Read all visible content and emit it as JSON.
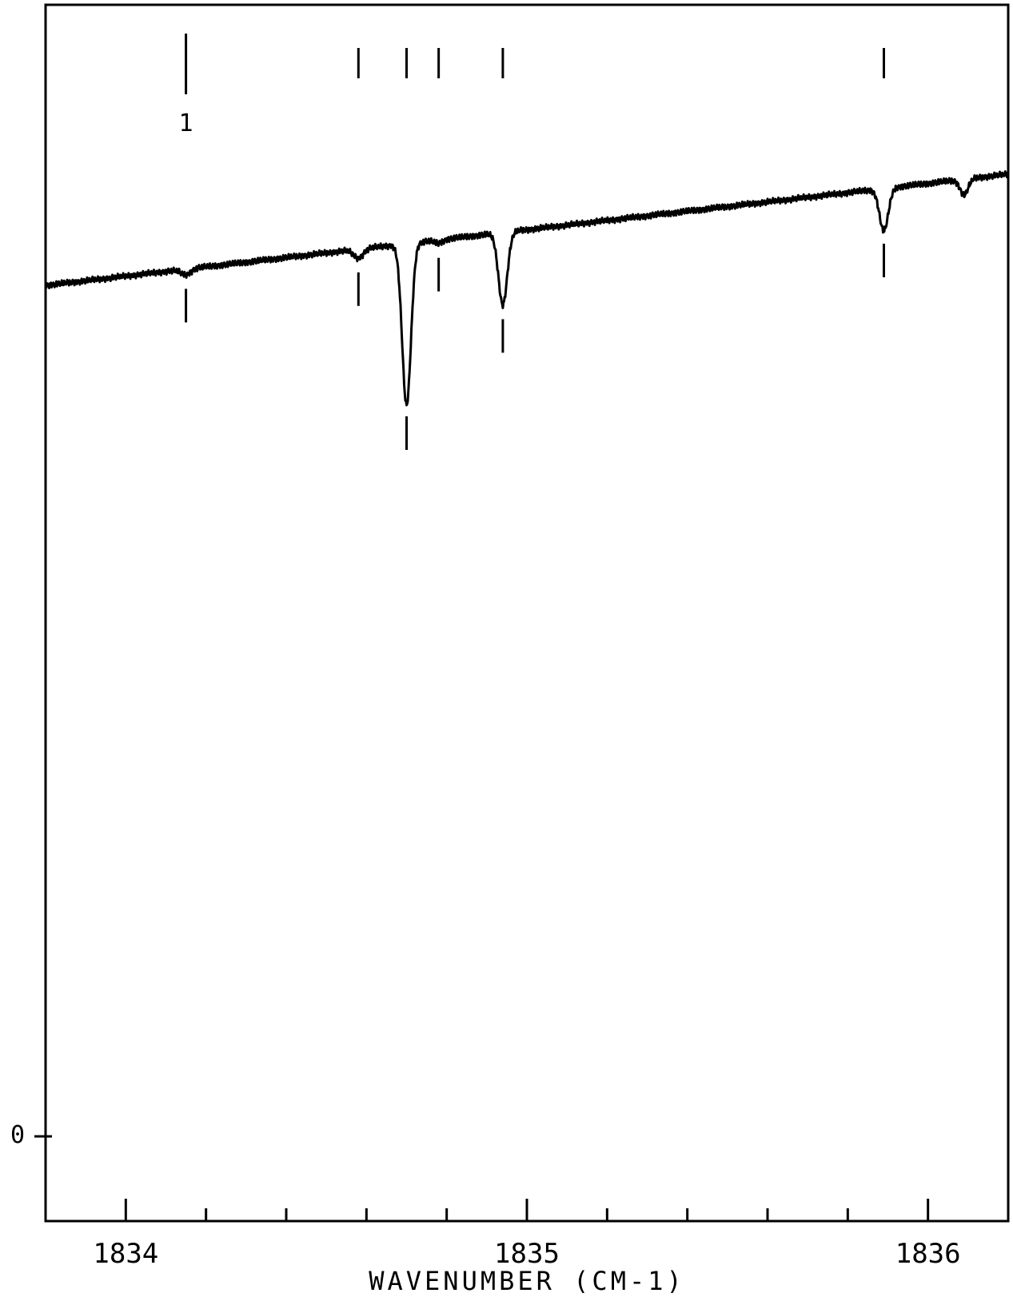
{
  "chart_data": {
    "type": "line",
    "title": "",
    "xlabel": "WAVENUMBER (CM-1)",
    "ylabel": "",
    "xlim": [
      1833.8,
      1836.2
    ],
    "ylim": [
      0,
      100
    ],
    "x_ticks_major": [
      1834,
      1835,
      1836
    ],
    "x_tick_labels": [
      "1834",
      "1835",
      "1836"
    ],
    "x_ticks_minor": [
      1834.2,
      1834.4,
      1834.6,
      1834.8,
      1835.2,
      1835.4,
      1835.6,
      1835.8
    ],
    "y_tick_labels": [
      {
        "value": 0,
        "label": "0"
      }
    ],
    "grid": false,
    "baseline": {
      "start": [
        1833.8,
        76.5
      ],
      "end": [
        1836.2,
        86.5
      ]
    },
    "absorption_lines": [
      {
        "x": 1834.15,
        "depth": 0.5,
        "width": 0.012
      },
      {
        "x": 1834.58,
        "depth": 0.8,
        "width": 0.012
      },
      {
        "x": 1834.7,
        "depth": 14.5,
        "width": 0.011
      },
      {
        "x": 1834.78,
        "depth": 0.3,
        "width": 0.01
      },
      {
        "x": 1834.94,
        "depth": 6.5,
        "width": 0.011
      },
      {
        "x": 1835.89,
        "depth": 3.8,
        "width": 0.011
      },
      {
        "x": 1836.09,
        "depth": 1.4,
        "width": 0.01
      }
    ],
    "markers_top": [
      {
        "x": 1834.15,
        "label": "1"
      },
      {
        "x": 1834.58,
        "label": ""
      },
      {
        "x": 1834.7,
        "label": ""
      },
      {
        "x": 1834.78,
        "label": ""
      },
      {
        "x": 1834.94,
        "label": ""
      },
      {
        "x": 1835.89,
        "label": ""
      }
    ],
    "markers_below": [
      1834.15,
      1834.58,
      1834.7,
      1834.78,
      1834.94,
      1835.89
    ]
  }
}
